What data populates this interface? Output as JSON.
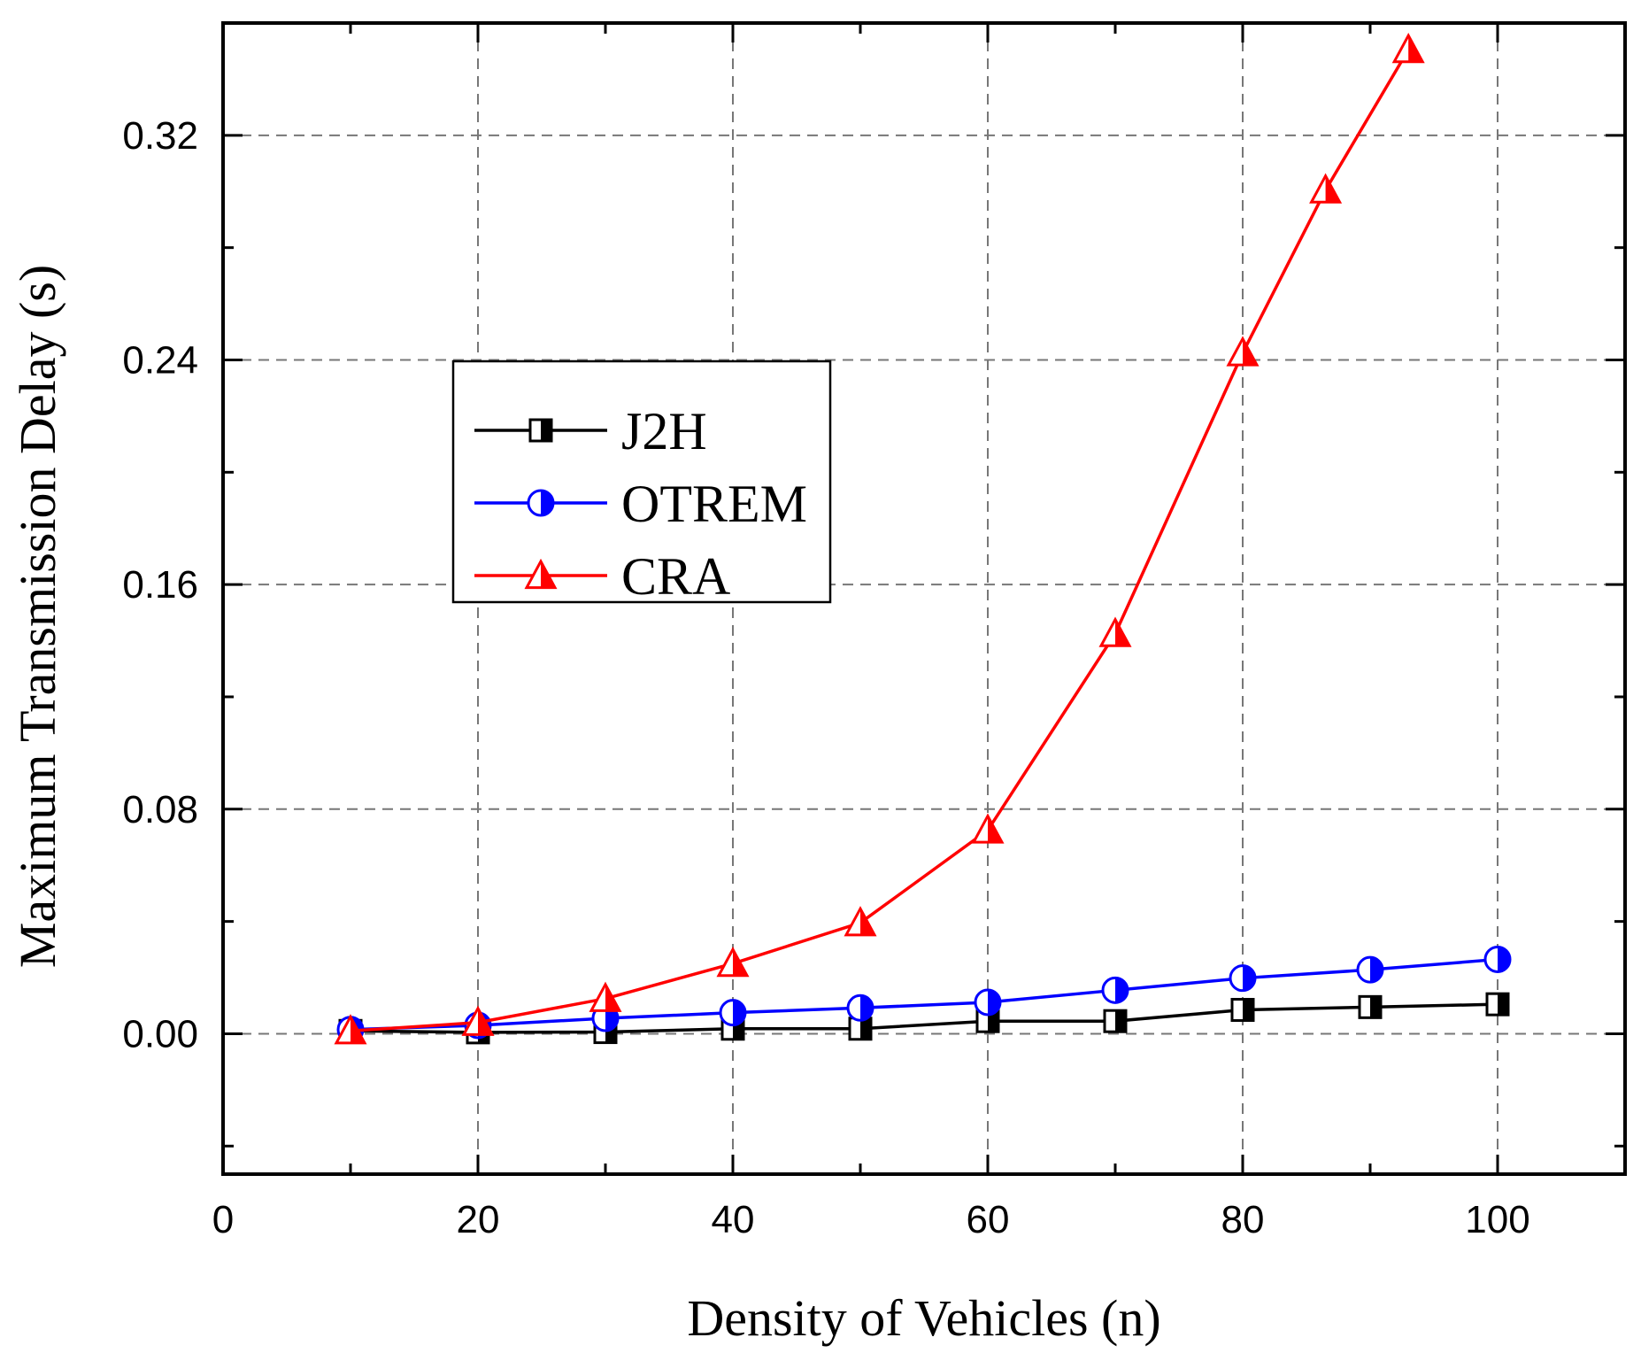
{
  "chart_data": {
    "type": "line",
    "title": "",
    "xlabel": "Density of Vehicles (n)",
    "ylabel": "Maximum Transmission Delay (s)",
    "xlim": [
      0,
      110
    ],
    "ylim": [
      -0.05,
      0.36
    ],
    "xticks": [
      0,
      20,
      40,
      60,
      80,
      100
    ],
    "xtick_labels": [
      "0",
      "20",
      "40",
      "60",
      "80",
      "100"
    ],
    "yticks": [
      0.0,
      0.08,
      0.16,
      0.24,
      0.32
    ],
    "ytick_labels": [
      "0.00",
      "0.08",
      "0.16",
      "0.24",
      "0.32"
    ],
    "grid": true,
    "legend_position": "center-left",
    "series": [
      {
        "name": "J2H",
        "color": "#000000",
        "marker": "half-filled-square",
        "x": [
          10,
          20,
          30,
          40,
          50,
          60,
          70,
          80,
          90,
          100
        ],
        "y": [
          0.001,
          0.0005,
          0.0006,
          0.0018,
          0.0018,
          0.0045,
          0.0045,
          0.0085,
          0.0095,
          0.0105
        ]
      },
      {
        "name": "OTREM",
        "color": "#0000ff",
        "marker": "half-filled-circle",
        "x": [
          10,
          20,
          30,
          40,
          50,
          60,
          70,
          80,
          90,
          100
        ],
        "y": [
          0.0015,
          0.003,
          0.0055,
          0.0075,
          0.0092,
          0.0112,
          0.0155,
          0.0198,
          0.0228,
          0.0265
        ]
      },
      {
        "name": "CRA",
        "color": "#ff0000",
        "marker": "half-filled-triangle",
        "x": [
          10,
          20,
          30,
          40,
          50,
          60,
          70,
          80,
          86.5,
          93
        ],
        "y": [
          0.001,
          0.004,
          0.0125,
          0.025,
          0.0395,
          0.0725,
          0.1425,
          0.2425,
          0.3005,
          0.3505
        ]
      }
    ]
  }
}
